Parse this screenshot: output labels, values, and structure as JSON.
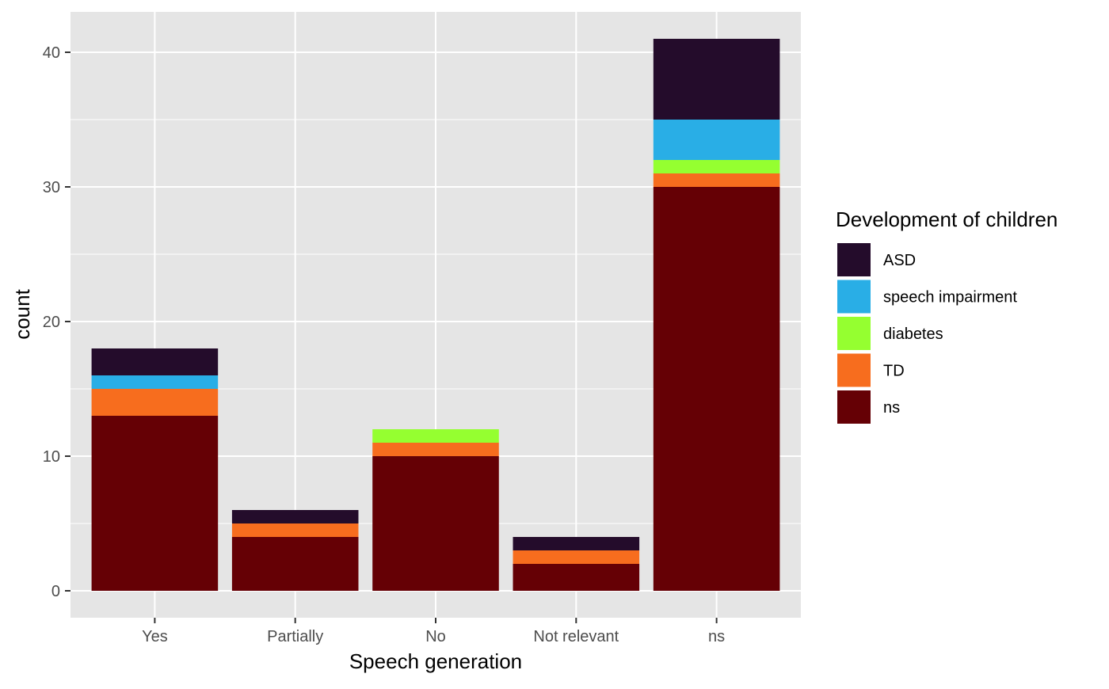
{
  "chart_data": {
    "type": "bar",
    "stacked": true,
    "xlabel": "Speech generation",
    "ylabel": "count",
    "categories": [
      "Yes",
      "Partially",
      "No",
      "Not relevant",
      "ns"
    ],
    "ylim": [
      -2,
      43
    ],
    "yticks": [
      0,
      10,
      20,
      30,
      40
    ],
    "grid": true,
    "legend": {
      "title": "Development of children",
      "placement": "right"
    },
    "series": [
      {
        "name": "ASD",
        "color": "#240c2b",
        "values": [
          2,
          1,
          0,
          1,
          6
        ]
      },
      {
        "name": "speech impairment",
        "color": "#29aee6",
        "values": [
          1,
          0,
          0,
          0,
          3
        ]
      },
      {
        "name": "diabetes",
        "color": "#95ff30",
        "values": [
          0,
          0,
          1,
          0,
          1
        ]
      },
      {
        "name": "TD",
        "color": "#f76d1e",
        "values": [
          2,
          1,
          1,
          1,
          1
        ]
      },
      {
        "name": "ns",
        "color": "#650005",
        "values": [
          13,
          4,
          10,
          2,
          30
        ]
      }
    ],
    "panel_background": "#e5e5e5",
    "grid_color": "#ffffff"
  }
}
